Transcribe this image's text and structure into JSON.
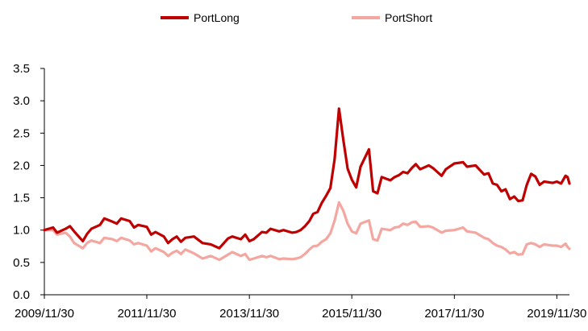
{
  "chart_data": {
    "type": "line",
    "title": "",
    "xlabel": "",
    "ylabel": "",
    "ylim": [
      0,
      3.5
    ],
    "yticks": [
      "0.0",
      "0.5",
      "1.0",
      "1.5",
      "2.0",
      "2.5",
      "3.0",
      "3.5"
    ],
    "xticks": [
      "2009/11/30",
      "2011/11/30",
      "2013/11/30",
      "2015/11/30",
      "2017/11/30",
      "2019/11/30"
    ],
    "x_start": "2009/11/30",
    "x_end": "2020/02/28",
    "legend_position": "top-center",
    "grid": false,
    "series": [
      {
        "name": "PortLong",
        "color": "#c00000",
        "points": [
          [
            "2009/11/30",
            1.0
          ],
          [
            "2010/01/31",
            1.04
          ],
          [
            "2010/02/28",
            0.96
          ],
          [
            "2010/04/30",
            1.02
          ],
          [
            "2010/05/31",
            1.06
          ],
          [
            "2010/06/30",
            0.98
          ],
          [
            "2010/08/31",
            0.83
          ],
          [
            "2010/09/30",
            0.94
          ],
          [
            "2010/10/31",
            1.02
          ],
          [
            "2010/12/31",
            1.08
          ],
          [
            "2011/01/31",
            1.18
          ],
          [
            "2011/03/31",
            1.13
          ],
          [
            "2011/04/30",
            1.1
          ],
          [
            "2011/05/31",
            1.18
          ],
          [
            "2011/07/31",
            1.14
          ],
          [
            "2011/08/31",
            1.04
          ],
          [
            "2011/09/30",
            1.08
          ],
          [
            "2011/11/30",
            1.05
          ],
          [
            "2011/12/31",
            0.93
          ],
          [
            "2012/01/31",
            0.97
          ],
          [
            "2012/03/31",
            0.9
          ],
          [
            "2012/04/30",
            0.8
          ],
          [
            "2012/05/31",
            0.86
          ],
          [
            "2012/06/30",
            0.9
          ],
          [
            "2012/07/31",
            0.82
          ],
          [
            "2012/08/31",
            0.88
          ],
          [
            "2012/10/31",
            0.9
          ],
          [
            "2012/12/31",
            0.8
          ],
          [
            "2013/02/28",
            0.78
          ],
          [
            "2013/04/30",
            0.72
          ],
          [
            "2013/06/30",
            0.87
          ],
          [
            "2013/07/31",
            0.9
          ],
          [
            "2013/09/30",
            0.86
          ],
          [
            "2013/10/31",
            0.93
          ],
          [
            "2013/11/30",
            0.83
          ],
          [
            "2013/12/31",
            0.86
          ],
          [
            "2014/02/28",
            0.97
          ],
          [
            "2014/03/31",
            0.96
          ],
          [
            "2014/04/30",
            1.02
          ],
          [
            "2014/06/30",
            0.98
          ],
          [
            "2014/07/31",
            1.0
          ],
          [
            "2014/09/30",
            0.96
          ],
          [
            "2014/10/31",
            0.97
          ],
          [
            "2014/11/30",
            1.0
          ],
          [
            "2014/12/31",
            1.06
          ],
          [
            "2015/01/31",
            1.14
          ],
          [
            "2015/02/28",
            1.25
          ],
          [
            "2015/03/31",
            1.28
          ],
          [
            "2015/04/30",
            1.42
          ],
          [
            "2015/05/31",
            1.53
          ],
          [
            "2015/06/30",
            1.65
          ],
          [
            "2015/07/31",
            2.1
          ],
          [
            "2015/08/31",
            2.88
          ],
          [
            "2015/09/30",
            2.4
          ],
          [
            "2015/10/31",
            1.95
          ],
          [
            "2015/11/30",
            1.78
          ],
          [
            "2015/12/31",
            1.66
          ],
          [
            "2016/01/31",
            1.98
          ],
          [
            "2016/03/31",
            2.25
          ],
          [
            "2016/04/30",
            1.6
          ],
          [
            "2016/05/31",
            1.57
          ],
          [
            "2016/06/30",
            1.82
          ],
          [
            "2016/08/31",
            1.77
          ],
          [
            "2016/09/30",
            1.82
          ],
          [
            "2016/10/31",
            1.85
          ],
          [
            "2016/11/30",
            1.9
          ],
          [
            "2016/12/31",
            1.88
          ],
          [
            "2017/01/31",
            1.96
          ],
          [
            "2017/02/28",
            2.02
          ],
          [
            "2017/03/31",
            1.94
          ],
          [
            "2017/05/31",
            2.0
          ],
          [
            "2017/06/30",
            1.96
          ],
          [
            "2017/08/31",
            1.84
          ],
          [
            "2017/09/30",
            1.94
          ],
          [
            "2017/11/30",
            2.03
          ],
          [
            "2018/01/31",
            2.05
          ],
          [
            "2018/02/28",
            1.98
          ],
          [
            "2018/04/30",
            2.0
          ],
          [
            "2018/06/30",
            1.86
          ],
          [
            "2018/07/31",
            1.88
          ],
          [
            "2018/08/31",
            1.72
          ],
          [
            "2018/09/30",
            1.7
          ],
          [
            "2018/10/31",
            1.6
          ],
          [
            "2018/11/30",
            1.63
          ],
          [
            "2018/12/31",
            1.48
          ],
          [
            "2019/01/31",
            1.52
          ],
          [
            "2019/02/28",
            1.45
          ],
          [
            "2019/03/31",
            1.46
          ],
          [
            "2019/04/30",
            1.7
          ],
          [
            "2019/05/31",
            1.87
          ],
          [
            "2019/06/30",
            1.83
          ],
          [
            "2019/07/31",
            1.7
          ],
          [
            "2019/08/31",
            1.75
          ],
          [
            "2019/10/31",
            1.73
          ],
          [
            "2019/11/30",
            1.75
          ],
          [
            "2019/12/31",
            1.72
          ],
          [
            "2020/01/31",
            1.84
          ],
          [
            "2020/02/15",
            1.82
          ],
          [
            "2020/02/28",
            1.72
          ]
        ]
      },
      {
        "name": "PortShort",
        "color": "#f4a6a0",
        "points": [
          [
            "2009/11/30",
            1.0
          ],
          [
            "2010/01/31",
            1.0
          ],
          [
            "2010/02/28",
            0.93
          ],
          [
            "2010/04/30",
            0.96
          ],
          [
            "2010/05/31",
            0.9
          ],
          [
            "2010/06/30",
            0.8
          ],
          [
            "2010/08/31",
            0.72
          ],
          [
            "2010/09/30",
            0.8
          ],
          [
            "2010/10/31",
            0.84
          ],
          [
            "2010/12/31",
            0.8
          ],
          [
            "2011/01/31",
            0.88
          ],
          [
            "2011/03/31",
            0.86
          ],
          [
            "2011/04/30",
            0.83
          ],
          [
            "2011/05/31",
            0.88
          ],
          [
            "2011/07/31",
            0.84
          ],
          [
            "2011/08/31",
            0.78
          ],
          [
            "2011/09/30",
            0.8
          ],
          [
            "2011/11/30",
            0.76
          ],
          [
            "2011/12/31",
            0.67
          ],
          [
            "2012/01/31",
            0.72
          ],
          [
            "2012/03/31",
            0.66
          ],
          [
            "2012/04/30",
            0.6
          ],
          [
            "2012/05/31",
            0.65
          ],
          [
            "2012/06/30",
            0.68
          ],
          [
            "2012/07/31",
            0.63
          ],
          [
            "2012/08/31",
            0.7
          ],
          [
            "2012/10/31",
            0.64
          ],
          [
            "2012/12/31",
            0.56
          ],
          [
            "2013/02/28",
            0.6
          ],
          [
            "2013/04/30",
            0.54
          ],
          [
            "2013/06/30",
            0.62
          ],
          [
            "2013/07/31",
            0.66
          ],
          [
            "2013/09/30",
            0.6
          ],
          [
            "2013/10/31",
            0.63
          ],
          [
            "2013/11/30",
            0.54
          ],
          [
            "2013/12/31",
            0.56
          ],
          [
            "2014/02/28",
            0.6
          ],
          [
            "2014/03/31",
            0.58
          ],
          [
            "2014/04/30",
            0.6
          ],
          [
            "2014/06/30",
            0.55
          ],
          [
            "2014/07/31",
            0.56
          ],
          [
            "2014/09/30",
            0.55
          ],
          [
            "2014/10/31",
            0.56
          ],
          [
            "2014/11/30",
            0.58
          ],
          [
            "2014/12/31",
            0.63
          ],
          [
            "2015/01/31",
            0.7
          ],
          [
            "2015/02/28",
            0.75
          ],
          [
            "2015/03/31",
            0.76
          ],
          [
            "2015/04/30",
            0.82
          ],
          [
            "2015/05/31",
            0.86
          ],
          [
            "2015/06/30",
            0.95
          ],
          [
            "2015/07/31",
            1.15
          ],
          [
            "2015/08/31",
            1.43
          ],
          [
            "2015/09/30",
            1.3
          ],
          [
            "2015/10/31",
            1.1
          ],
          [
            "2015/11/30",
            0.98
          ],
          [
            "2015/12/31",
            0.95
          ],
          [
            "2016/01/31",
            1.1
          ],
          [
            "2016/03/31",
            1.15
          ],
          [
            "2016/04/30",
            0.86
          ],
          [
            "2016/05/31",
            0.84
          ],
          [
            "2016/06/30",
            1.02
          ],
          [
            "2016/08/31",
            1.0
          ],
          [
            "2016/09/30",
            1.04
          ],
          [
            "2016/10/31",
            1.05
          ],
          [
            "2016/11/30",
            1.1
          ],
          [
            "2016/12/31",
            1.08
          ],
          [
            "2017/01/31",
            1.12
          ],
          [
            "2017/02/28",
            1.13
          ],
          [
            "2017/03/31",
            1.05
          ],
          [
            "2017/05/31",
            1.06
          ],
          [
            "2017/06/30",
            1.04
          ],
          [
            "2017/08/31",
            0.96
          ],
          [
            "2017/09/30",
            0.99
          ],
          [
            "2017/11/30",
            1.0
          ],
          [
            "2018/01/31",
            1.04
          ],
          [
            "2018/02/28",
            0.98
          ],
          [
            "2018/04/30",
            0.96
          ],
          [
            "2018/06/30",
            0.88
          ],
          [
            "2018/07/31",
            0.86
          ],
          [
            "2018/08/31",
            0.8
          ],
          [
            "2018/09/30",
            0.76
          ],
          [
            "2018/10/31",
            0.74
          ],
          [
            "2018/11/30",
            0.7
          ],
          [
            "2018/12/31",
            0.64
          ],
          [
            "2019/01/31",
            0.66
          ],
          [
            "2019/02/28",
            0.62
          ],
          [
            "2019/03/31",
            0.63
          ],
          [
            "2019/04/30",
            0.78
          ],
          [
            "2019/05/31",
            0.8
          ],
          [
            "2019/06/30",
            0.78
          ],
          [
            "2019/07/31",
            0.74
          ],
          [
            "2019/08/31",
            0.78
          ],
          [
            "2019/10/31",
            0.76
          ],
          [
            "2019/11/30",
            0.76
          ],
          [
            "2019/12/31",
            0.74
          ],
          [
            "2020/01/31",
            0.79
          ],
          [
            "2020/02/15",
            0.74
          ],
          [
            "2020/02/28",
            0.71
          ]
        ]
      }
    ]
  }
}
